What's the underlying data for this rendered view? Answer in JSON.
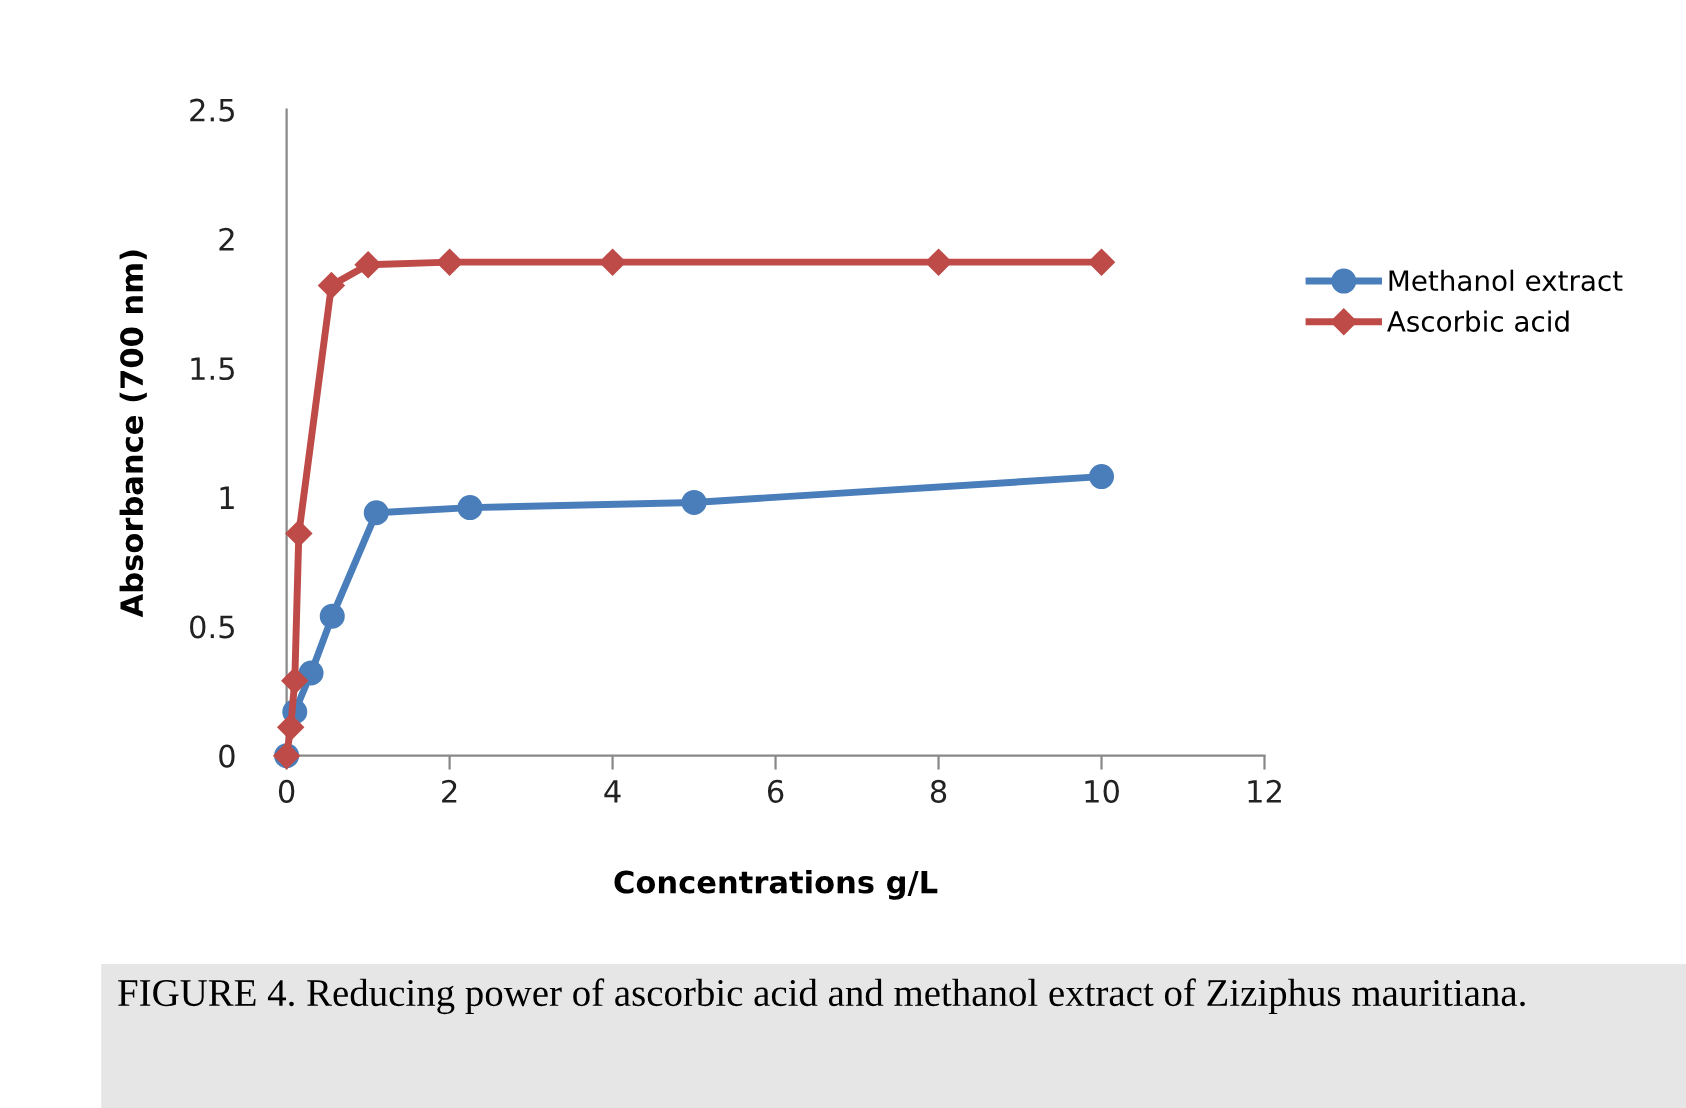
{
  "chart_data": {
    "type": "line",
    "xlabel": "Concentrations g/L",
    "ylabel": "Absorbance (700 nm)",
    "annotations": [
      "FIGURE 4. Reducing power of ascorbic acid and methanol extract of Ziziphus mauritiana."
    ],
    "series": [
      {
        "name": "Methanol extract",
        "color": "#4a7ebb",
        "marker": "circle",
        "x": [
          0,
          0.02,
          0.05,
          0.1,
          0.3,
          0.56,
          1.1,
          2.25,
          5,
          10
        ],
        "values": [
          0,
          null,
          null,
          0.17,
          0.32,
          0.54,
          0.94,
          0.96,
          0.98,
          1.08
        ]
      },
      {
        "name": "Ascorbic acid",
        "color": "#be4b48",
        "marker": "diamond",
        "x": [
          0,
          0.05,
          0.1,
          0.15,
          0.55,
          1,
          2,
          4,
          8,
          10
        ],
        "values": [
          0,
          0.11,
          0.29,
          0.86,
          1.82,
          1.9,
          1.91,
          1.91,
          1.91,
          1.91
        ]
      }
    ],
    "xlim": [
      0,
      12
    ],
    "xticks": [
      0,
      2,
      4,
      6,
      8,
      10,
      12
    ],
    "ylim": [
      0,
      2.5
    ],
    "yticks": [
      0,
      0.5,
      1,
      1.5,
      2,
      2.5
    ],
    "grid": false,
    "legend": "right",
    "line_style": "solid"
  }
}
